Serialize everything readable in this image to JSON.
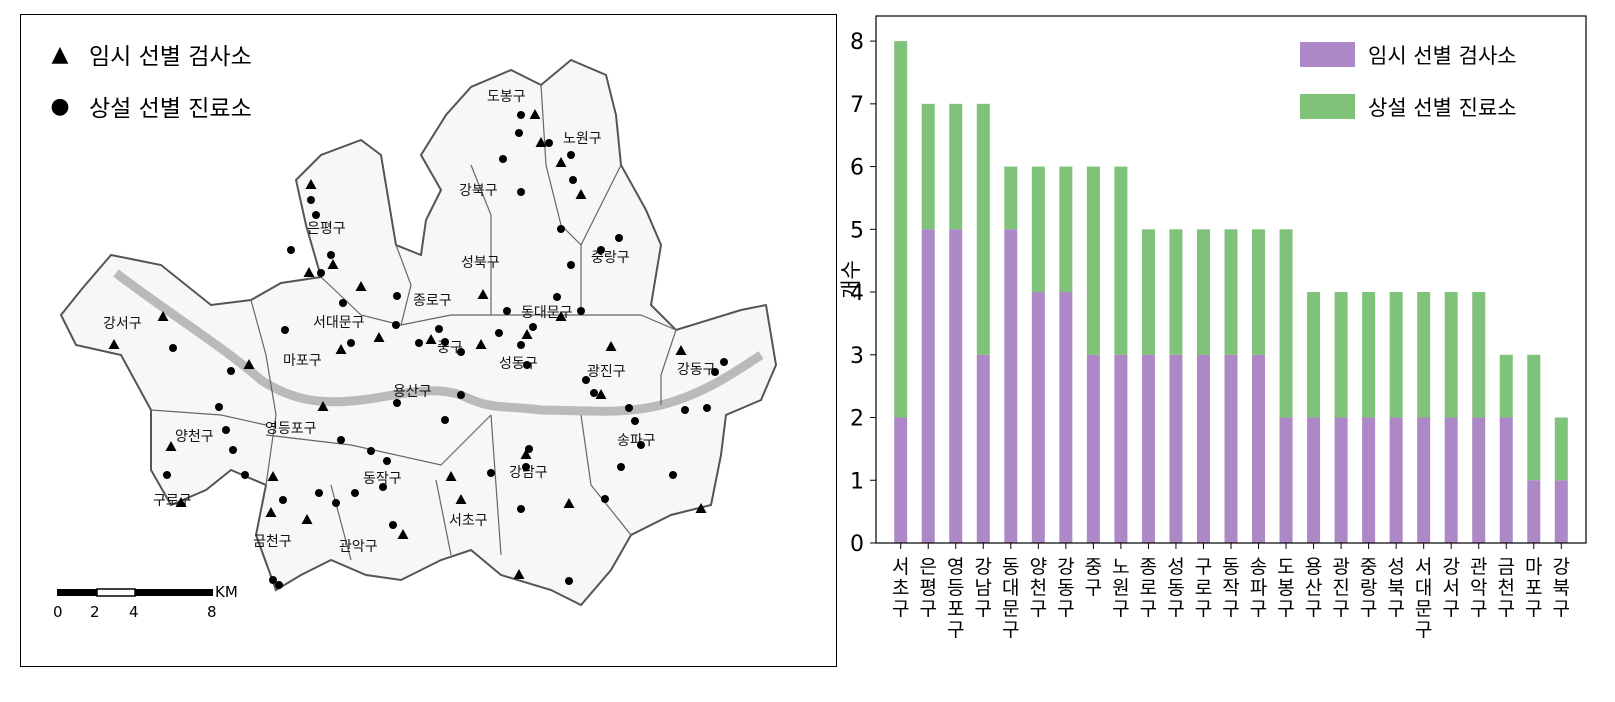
{
  "map": {
    "legend": [
      {
        "symbol": "▲",
        "label": "임시 선별 검사소"
      },
      {
        "symbol": "●",
        "label": "상설 선별 진료소"
      }
    ],
    "districts": [
      "도봉구",
      "노원구",
      "강북구",
      "은평구",
      "성북구",
      "중랑구",
      "종로구",
      "서대문구",
      "동대문구",
      "강서구",
      "마포구",
      "중구",
      "성동구",
      "광진구",
      "강동구",
      "용산구",
      "양천구",
      "영등포구",
      "동작구",
      "강남구",
      "송파구",
      "구로구",
      "서초구",
      "금천구",
      "관악구"
    ],
    "scale": {
      "unit": "KM",
      "ticks": [
        "0",
        "2",
        "4",
        "8"
      ]
    }
  },
  "chart_data": {
    "type": "bar",
    "stacked": true,
    "categories": [
      "서초구",
      "은평구",
      "영등포구",
      "강남구",
      "동대문구",
      "양천구",
      "강동구",
      "중구",
      "노원구",
      "종로구",
      "성동구",
      "구로구",
      "동작구",
      "송파구",
      "도봉구",
      "용산구",
      "광진구",
      "중랑구",
      "성북구",
      "서대문구",
      "강서구",
      "관악구",
      "금천구",
      "마포구",
      "강북구"
    ],
    "series": [
      {
        "name": "임시 선별 검사소",
        "color": "#ad88c6",
        "values": [
          2,
          5,
          5,
          3,
          5,
          4,
          4,
          3,
          3,
          3,
          3,
          3,
          3,
          3,
          2,
          2,
          2,
          2,
          2,
          2,
          2,
          2,
          2,
          1,
          1
        ]
      },
      {
        "name": "상설 선별 진료소",
        "color": "#7fc27a",
        "values": [
          6,
          2,
          2,
          4,
          1,
          2,
          2,
          3,
          3,
          2,
          2,
          2,
          2,
          2,
          3,
          2,
          2,
          2,
          2,
          2,
          2,
          2,
          1,
          2,
          1
        ]
      }
    ],
    "ylabel": "개수",
    "yticks": [
      0,
      1,
      2,
      3,
      4,
      5,
      6,
      7,
      8
    ],
    "ylim": [
      0,
      8.4
    ],
    "legend_position": "top-right"
  }
}
